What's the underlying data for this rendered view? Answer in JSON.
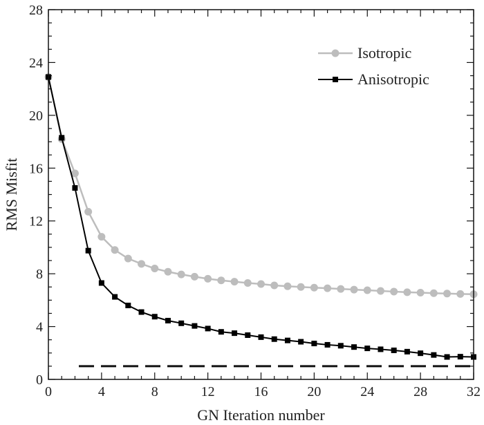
{
  "chart_data": {
    "type": "line",
    "xlabel": "GN Iteration number",
    "ylabel": "RMS Misfit",
    "xlim": [
      0,
      32
    ],
    "ylim": [
      0,
      28
    ],
    "xticks": [
      0,
      4,
      8,
      12,
      16,
      20,
      24,
      28,
      32
    ],
    "yticks": [
      0,
      4,
      8,
      12,
      16,
      20,
      24,
      28
    ],
    "grid": false,
    "legend_position": "top-right",
    "reference_line": {
      "y": 1.0,
      "style": "dashed",
      "color": "#111111"
    },
    "series": [
      {
        "name": "Isotropic",
        "color": "#bdbdbd",
        "marker": "circle",
        "x": [
          0,
          1,
          2,
          3,
          4,
          5,
          6,
          7,
          8,
          9,
          10,
          11,
          12,
          13,
          14,
          15,
          16,
          17,
          18,
          19,
          20,
          21,
          22,
          23,
          24,
          25,
          26,
          27,
          28,
          29,
          30,
          31,
          32
        ],
        "values": [
          22.9,
          18.2,
          15.6,
          12.7,
          10.8,
          9.8,
          9.15,
          8.75,
          8.4,
          8.15,
          7.95,
          7.78,
          7.62,
          7.5,
          7.4,
          7.3,
          7.22,
          7.12,
          7.05,
          7.0,
          6.95,
          6.9,
          6.85,
          6.8,
          6.75,
          6.7,
          6.65,
          6.6,
          6.57,
          6.53,
          6.5,
          6.47,
          6.45
        ]
      },
      {
        "name": "Anisotropic",
        "color": "#000000",
        "marker": "square",
        "x": [
          0,
          1,
          2,
          3,
          4,
          5,
          6,
          7,
          8,
          9,
          10,
          11,
          12,
          13,
          14,
          15,
          16,
          17,
          18,
          19,
          20,
          21,
          22,
          23,
          24,
          25,
          26,
          27,
          28,
          29,
          30,
          31,
          32
        ],
        "values": [
          22.9,
          18.3,
          14.5,
          9.75,
          7.3,
          6.25,
          5.6,
          5.1,
          4.75,
          4.45,
          4.25,
          4.05,
          3.85,
          3.6,
          3.5,
          3.35,
          3.2,
          3.05,
          2.95,
          2.85,
          2.72,
          2.62,
          2.55,
          2.45,
          2.35,
          2.28,
          2.2,
          2.1,
          1.98,
          1.85,
          1.7,
          1.72,
          1.7
        ]
      }
    ]
  }
}
